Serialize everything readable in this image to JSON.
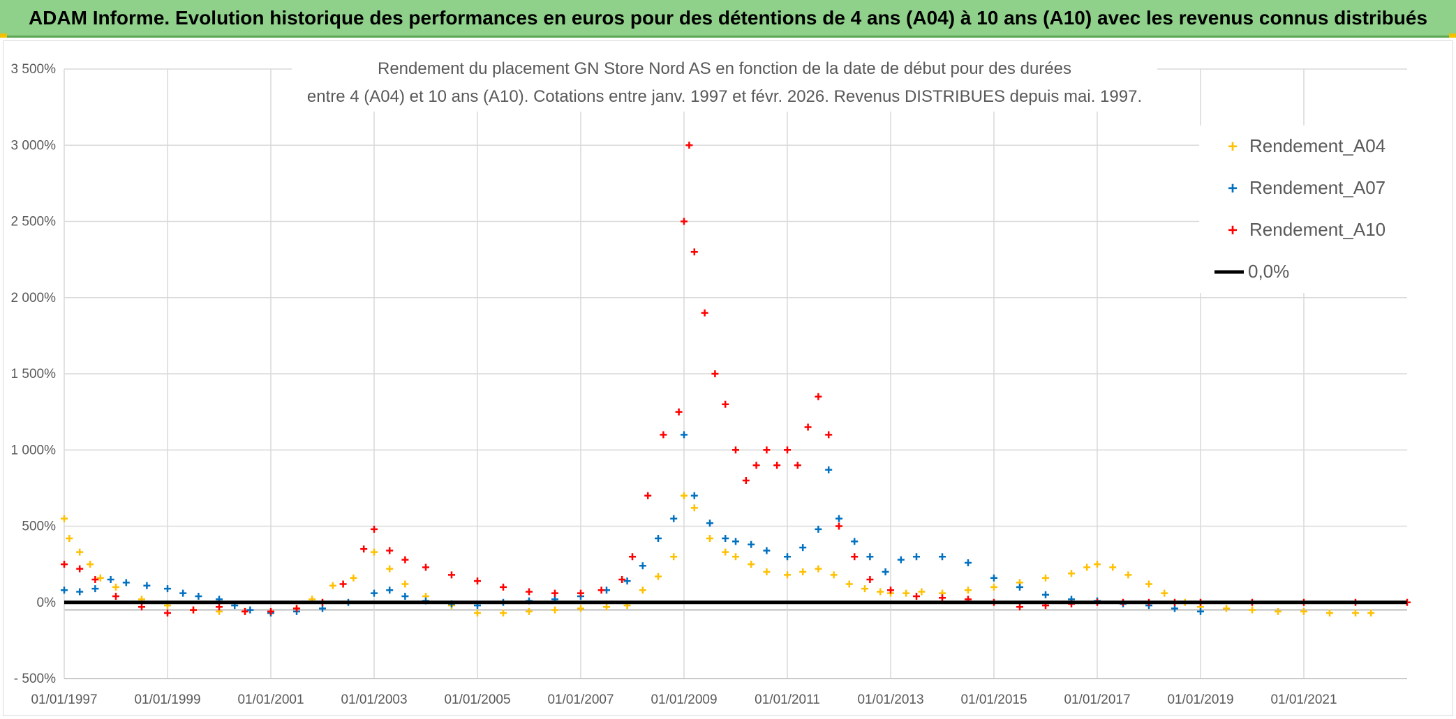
{
  "header": {
    "banner": "ADAM Informe. Evolution historique des performances en euros pour des détentions de 4 ans (A04) à 10 ans (A10) avec les revenus connus distribués"
  },
  "colors": {
    "banner_bg": "#8fd08a",
    "a04": "#ffc000",
    "a07": "#0070c0",
    "a10": "#ff0000",
    "zero": "#000000",
    "grid": "#d9d9d9"
  },
  "chart_data": {
    "type": "scatter",
    "title_line1": "Rendement du placement GN Store Nord AS en fonction de la date de début pour des durées",
    "title_line2": "entre 4 (A04) et 10 ans (A10). Cotations entre janv. 1997 et févr. 2026. Revenus DISTRIBUES depuis mai. 1997.",
    "xlabel": "",
    "ylabel": "",
    "xlim": [
      1997.0,
      2023.0
    ],
    "ylim": [
      -500,
      3500
    ],
    "y_ticks": [
      -500,
      0,
      500,
      1000,
      1500,
      2000,
      2500,
      3000,
      3500
    ],
    "y_tick_labels": [
      "- 500%",
      "0%",
      "500%",
      "1 000%",
      "1 500%",
      "2 000%",
      "2 500%",
      "3 000%",
      "3 500%"
    ],
    "x_ticks": [
      1997,
      1999,
      2001,
      2003,
      2005,
      2007,
      2009,
      2011,
      2013,
      2015,
      2017,
      2019,
      2021
    ],
    "x_tick_labels": [
      "01/01/1997",
      "01/01/1999",
      "01/01/2001",
      "01/01/2003",
      "01/01/2005",
      "01/01/2007",
      "01/01/2009",
      "01/01/2011",
      "01/01/2013",
      "01/01/2015",
      "01/01/2017",
      "01/01/2019",
      "01/01/2021"
    ],
    "legend_position": "top-right",
    "series": [
      {
        "name": "Rendement_A04",
        "color": "#ffc000",
        "marker": "+",
        "x": [
          1997.0,
          1997.1,
          1997.3,
          1997.5,
          1997.7,
          1998.0,
          1998.5,
          1999.0,
          1999.5,
          2000.0,
          2000.5,
          2001.0,
          2001.5,
          2001.8,
          2002.2,
          2002.6,
          2003.0,
          2003.3,
          2003.6,
          2004.0,
          2004.5,
          2005.0,
          2005.5,
          2006.0,
          2006.5,
          2007.0,
          2007.5,
          2007.9,
          2008.2,
          2008.5,
          2008.8,
          2009.0,
          2009.2,
          2009.5,
          2009.8,
          2010.0,
          2010.3,
          2010.6,
          2011.0,
          2011.3,
          2011.6,
          2011.9,
          2012.2,
          2012.5,
          2012.8,
          2013.0,
          2013.3,
          2013.6,
          2014.0,
          2014.5,
          2015.0,
          2015.5,
          2016.0,
          2016.5,
          2016.8,
          2017.0,
          2017.3,
          2017.6,
          2018.0,
          2018.3,
          2018.7,
          2019.0,
          2019.5,
          2020.0,
          2020.5,
          2021.0,
          2021.5,
          2022.0,
          2022.3
        ],
        "y": [
          550,
          420,
          330,
          250,
          160,
          100,
          20,
          -20,
          -50,
          -60,
          -60,
          -70,
          -40,
          20,
          110,
          160,
          330,
          220,
          120,
          40,
          -20,
          -70,
          -70,
          -60,
          -50,
          -40,
          -30,
          -20,
          80,
          170,
          300,
          700,
          620,
          420,
          330,
          300,
          250,
          200,
          180,
          200,
          220,
          180,
          120,
          90,
          70,
          60,
          60,
          70,
          60,
          80,
          100,
          130,
          160,
          190,
          230,
          250,
          230,
          180,
          120,
          60,
          0,
          -30,
          -40,
          -50,
          -60,
          -60,
          -70,
          -70,
          -70
        ]
      },
      {
        "name": "Rendement_A07",
        "color": "#0070c0",
        "marker": "+",
        "x": [
          1997.0,
          1997.3,
          1997.6,
          1997.9,
          1998.2,
          1998.6,
          1999.0,
          1999.3,
          1999.6,
          2000.0,
          2000.3,
          2000.6,
          2001.0,
          2001.5,
          2002.0,
          2002.5,
          2003.0,
          2003.3,
          2003.6,
          2004.0,
          2004.5,
          2005.0,
          2005.5,
          2006.0,
          2006.5,
          2007.0,
          2007.5,
          2007.9,
          2008.2,
          2008.5,
          2008.8,
          2009.0,
          2009.2,
          2009.5,
          2009.8,
          2010.0,
          2010.3,
          2010.6,
          2011.0,
          2011.3,
          2011.6,
          2011.8,
          2012.0,
          2012.3,
          2012.6,
          2012.9,
          2013.2,
          2013.5,
          2014.0,
          2014.5,
          2015.0,
          2015.5,
          2016.0,
          2016.5,
          2017.0,
          2017.5,
          2018.0,
          2018.5,
          2019.0
        ],
        "y": [
          80,
          70,
          90,
          150,
          130,
          110,
          90,
          60,
          40,
          20,
          -20,
          -50,
          -70,
          -60,
          -40,
          0,
          60,
          80,
          40,
          10,
          -10,
          -20,
          0,
          10,
          20,
          40,
          80,
          140,
          240,
          420,
          550,
          1100,
          700,
          520,
          420,
          400,
          380,
          340,
          300,
          360,
          480,
          870,
          550,
          400,
          300,
          200,
          280,
          300,
          300,
          260,
          160,
          100,
          50,
          20,
          10,
          -10,
          -20,
          -40,
          -60
        ]
      },
      {
        "name": "Rendement_A10",
        "color": "#ff0000",
        "marker": "+",
        "x": [
          1997.0,
          1997.3,
          1997.6,
          1998.0,
          1998.5,
          1999.0,
          1999.5,
          2000.0,
          2000.5,
          2001.0,
          2001.5,
          2002.0,
          2002.4,
          2002.8,
          2003.0,
          2003.3,
          2003.6,
          2004.0,
          2004.5,
          2005.0,
          2005.5,
          2006.0,
          2006.5,
          2007.0,
          2007.4,
          2007.8,
          2008.0,
          2008.3,
          2008.6,
          2008.9,
          2009.0,
          2009.1,
          2009.2,
          2009.4,
          2009.6,
          2009.8,
          2010.0,
          2010.2,
          2010.4,
          2010.6,
          2010.8,
          2011.0,
          2011.2,
          2011.4,
          2011.6,
          2011.8,
          2012.0,
          2012.3,
          2012.6,
          2013.0,
          2013.5,
          2014.0,
          2014.5,
          2015.0,
          2015.5,
          2016.0,
          2016.5,
          2017.0,
          2017.5,
          2018.0,
          2018.5,
          2019.0,
          2020.0,
          2021.0,
          2022.0,
          2023.0
        ],
        "y": [
          250,
          220,
          150,
          40,
          -30,
          -70,
          -50,
          -30,
          -60,
          -60,
          -40,
          0,
          120,
          350,
          480,
          340,
          280,
          230,
          180,
          140,
          100,
          70,
          60,
          60,
          80,
          150,
          300,
          700,
          1100,
          1250,
          2500,
          3000,
          2300,
          1900,
          1500,
          1300,
          1000,
          800,
          900,
          1000,
          900,
          1000,
          900,
          1150,
          1350,
          1100,
          500,
          300,
          150,
          80,
          40,
          30,
          20,
          0,
          -30,
          -20,
          -10,
          0,
          0,
          0,
          0,
          0,
          0,
          0,
          0,
          0
        ]
      }
    ],
    "reference_line": {
      "name": "0,0%",
      "y": 0,
      "color": "#000000"
    }
  }
}
